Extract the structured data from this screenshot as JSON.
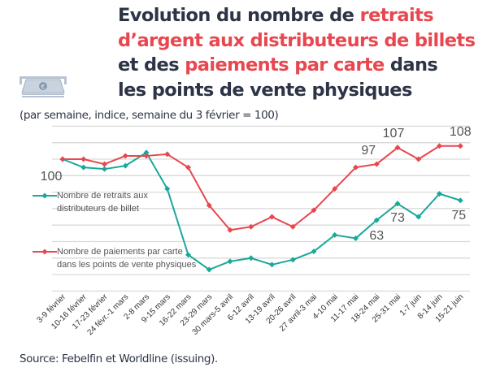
{
  "header": {
    "title_parts": [
      {
        "text": "Evolution du nombre de ",
        "highlight": false
      },
      {
        "text": "retraits",
        "highlight": true
      },
      {
        "text": "d’argent aux distributeurs de billets",
        "highlight": true
      },
      {
        "text": "et des ",
        "highlight": false
      },
      {
        "text": "paiements par carte",
        "highlight": true
      },
      {
        "text": " dans",
        "highlight": false
      },
      {
        "text": "les points de vente physiques",
        "highlight": false
      }
    ],
    "subtitle": "(par semaine, indice, semaine du 3 février = 100)",
    "icon": "banknote-euro-icon"
  },
  "source": "Source: Febelfin et Worldline (issuing).",
  "colors": {
    "text": "#2d3446",
    "highlight": "#e8474f",
    "withdrawals": "#1aa89a",
    "payments": "#e8474f",
    "grid": "#d9d9d9"
  },
  "chart_data": {
    "type": "line",
    "title": "",
    "xlabel": "",
    "ylabel": "",
    "ylim": [
      20,
      120
    ],
    "grid": true,
    "gridlines": [
      20,
      30,
      40,
      50,
      60,
      70,
      80,
      90,
      100,
      110,
      120
    ],
    "y_axis_labels_shown": false,
    "legend_placement": "left-inside",
    "categories": [
      "3-9 février",
      "10-16 février",
      "17-23 février",
      "24 févr.-1 mars",
      "2-8 mars",
      "9-15 mars",
      "16-22 mars",
      "23-29 mars",
      "30 mars-5 avril",
      "6-12 avril",
      "13-19 avril",
      "20-26 avril",
      "27 avril-3 mai",
      "4-10 mai",
      "11-17 mai",
      "18-24 mai",
      "25-31 mai",
      "1-7 juin",
      "8-14 juin",
      "15-21 juin"
    ],
    "series": [
      {
        "name": "Nombre de retraits aux distributeurs de billet",
        "legend_lines": [
          "Nombre de retraits aux",
          "distributeurs de billet"
        ],
        "color": "#1aa89a",
        "values": [
          100,
          95,
          94,
          96,
          104,
          82,
          42,
          33,
          38,
          40,
          36,
          39,
          44,
          54,
          52,
          63,
          73,
          65,
          79,
          75
        ],
        "data_labels": [
          {
            "index": 0,
            "text": "100"
          },
          {
            "index": 15,
            "text": "63"
          },
          {
            "index": 16,
            "text": "73"
          },
          {
            "index": 19,
            "text": "75"
          }
        ]
      },
      {
        "name": "Nombre de paiements par carte dans les points de vente physiques",
        "legend_lines": [
          "Nombre de paiements par carte",
          "dans les points de vente physiques"
        ],
        "color": "#e8474f",
        "values": [
          100,
          100,
          97,
          102,
          102,
          103,
          95,
          72,
          57,
          59,
          65,
          59,
          69,
          82,
          95,
          97,
          107,
          100,
          108,
          108
        ],
        "data_labels": [
          {
            "index": 15,
            "text": "97"
          },
          {
            "index": 16,
            "text": "107"
          },
          {
            "index": 19,
            "text": "108"
          }
        ]
      }
    ]
  }
}
